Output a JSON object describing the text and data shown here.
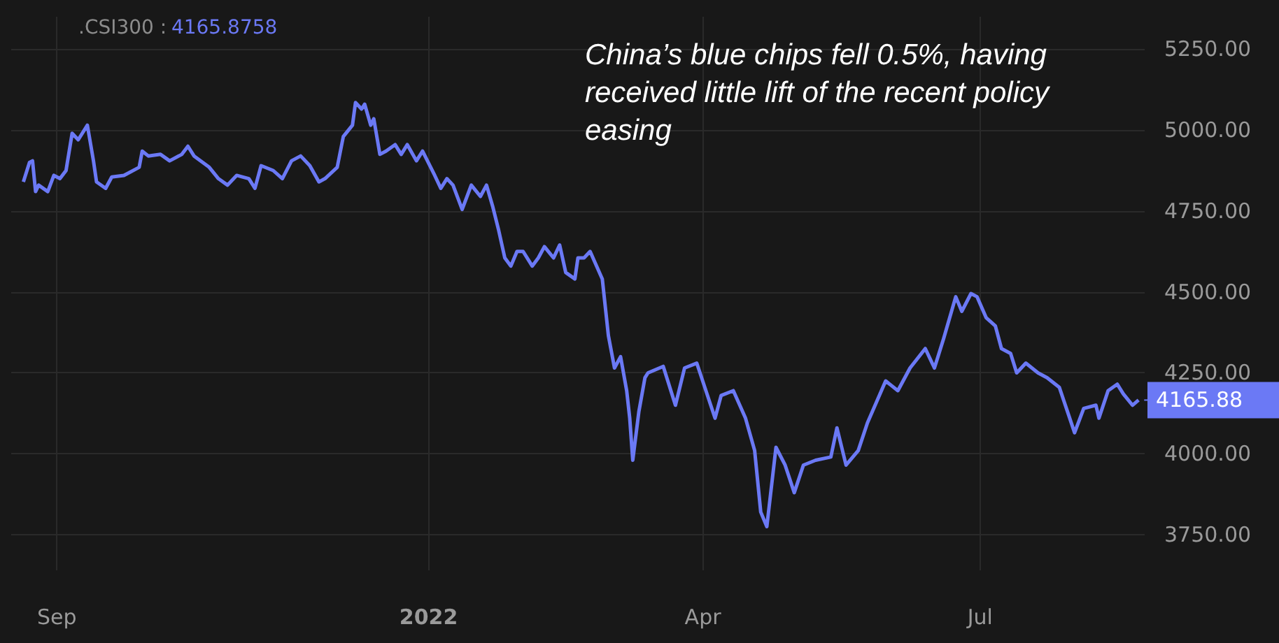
{
  "chart_data": {
    "type": "line",
    "annotations": [
      "China’s blue chips fell 0.5%, having received little lift of the recent policy easing",
      "4165.8758",
      ".CSI300 :",
      {
        "text": "4165.88",
        "x": "2022-08-22",
        "y": 4165.88
      }
    ],
    "x": [
      "2021-08-21",
      "2021-08-23",
      "2021-08-24",
      "2021-08-25",
      "2021-08-26",
      "2021-08-29",
      "2021-08-31",
      "2021-09-02",
      "2021-09-04",
      "2021-09-06",
      "2021-09-08",
      "2021-09-11",
      "2021-09-13",
      "2021-09-14",
      "2021-09-17",
      "2021-09-19",
      "2021-09-23",
      "2021-09-28",
      "2021-09-29",
      "2021-10-01",
      "2021-10-05",
      "2021-10-08",
      "2021-10-12",
      "2021-10-14",
      "2021-10-16",
      "2021-10-21",
      "2021-10-24",
      "2021-10-27",
      "2021-10-30",
      "2021-11-03",
      "2021-11-05",
      "2021-11-07",
      "2021-11-11",
      "2021-11-14",
      "2021-11-17",
      "2021-11-20",
      "2021-11-23",
      "2021-11-26",
      "2021-11-28",
      "2021-12-02",
      "2021-12-04",
      "2021-12-07",
      "2021-12-08",
      "2021-12-10",
      "2021-12-11",
      "2021-12-13",
      "2021-12-14",
      "2021-12-16",
      "2021-12-18",
      "2021-12-21",
      "2021-12-23",
      "2021-12-25",
      "2021-12-28",
      "2021-12-30",
      "2022-01-03",
      "2022-01-05",
      "2022-01-07",
      "2022-01-09",
      "2022-01-12",
      "2022-01-15",
      "2022-01-18",
      "2022-01-20",
      "2022-01-22",
      "2022-01-24",
      "2022-01-26",
      "2022-01-28",
      "2022-01-30",
      "2022-02-01",
      "2022-02-04",
      "2022-02-06",
      "2022-02-08",
      "2022-02-11",
      "2022-02-13",
      "2022-02-15",
      "2022-02-18",
      "2022-02-19",
      "2022-02-21",
      "2022-02-23",
      "2022-02-27",
      "2022-03-01",
      "2022-03-03",
      "2022-03-05",
      "2022-03-07",
      "2022-03-08",
      "2022-03-09",
      "2022-03-11",
      "2022-03-13",
      "2022-03-14",
      "2022-03-19",
      "2022-03-23",
      "2022-03-26",
      "2022-03-30",
      "2022-04-05",
      "2022-04-07",
      "2022-04-11",
      "2022-04-15",
      "2022-04-18",
      "2022-04-20",
      "2022-04-22",
      "2022-04-25",
      "2022-04-28",
      "2022-05-01",
      "2022-05-04",
      "2022-05-08",
      "2022-05-13",
      "2022-05-15",
      "2022-05-18",
      "2022-05-22",
      "2022-05-25",
      "2022-05-31",
      "2022-06-04",
      "2022-06-08",
      "2022-06-13",
      "2022-06-16",
      "2022-06-19",
      "2022-06-23",
      "2022-06-25",
      "2022-06-28",
      "2022-06-30",
      "2022-07-03",
      "2022-07-06",
      "2022-07-08",
      "2022-07-11",
      "2022-07-13",
      "2022-07-16",
      "2022-07-20",
      "2022-07-23",
      "2022-07-27",
      "2022-08-01",
      "2022-08-04",
      "2022-08-08",
      "2022-08-09",
      "2022-08-12",
      "2022-08-15",
      "2022-08-17",
      "2022-08-20",
      "2022-08-22"
    ],
    "series": [
      {
        "color": "#6b79f5",
        "values": [
          4840,
          4900,
          4905,
          4810,
          4830,
          4810,
          4860,
          4850,
          4875,
          4990,
          4970,
          5015,
          4905,
          4840,
          4820,
          4855,
          4860,
          4885,
          4935,
          4920,
          4925,
          4905,
          4925,
          4950,
          4920,
          4885,
          4850,
          4830,
          4860,
          4850,
          4820,
          4890,
          4875,
          4850,
          4905,
          4920,
          4890,
          4840,
          4850,
          4885,
          4980,
          5015,
          5085,
          5065,
          5080,
          5015,
          5035,
          4925,
          4935,
          4955,
          4925,
          4955,
          4905,
          4935,
          4860,
          4820,
          4850,
          4830,
          4755,
          4830,
          4795,
          4830,
          4765,
          4690,
          4605,
          4580,
          4625,
          4625,
          4580,
          4605,
          4640,
          4605,
          4645,
          4560,
          4540,
          4605,
          4605,
          4625,
          4540,
          4365,
          4265,
          4300,
          4195,
          4110,
          3980,
          4130,
          4235,
          4250,
          4270,
          4150,
          4265,
          4280,
          4110,
          4180,
          4195,
          4110,
          4010,
          3820,
          3775,
          4020,
          3965,
          3880,
          3965,
          3980,
          3990,
          4080,
          3965,
          4010,
          4095,
          4225,
          4195,
          4265,
          4325,
          4265,
          4355,
          4485,
          4440,
          4495,
          4485,
          4420,
          4395,
          4325,
          4310,
          4250,
          4280,
          4250,
          4235,
          4205,
          4065,
          4140,
          4150,
          4110,
          4195,
          4215,
          4185,
          4150,
          4165.88
        ]
      }
    ],
    "xlim": [
      "2021-08-17",
      "2022-08-24"
    ],
    "xticks": [
      {
        "value": "2021-09-01",
        "label": "Sep"
      },
      {
        "value": "2022-01-01",
        "label": "2022"
      },
      {
        "value": "2022-04-01",
        "label": "Apr"
      },
      {
        "value": "2022-07-01",
        "label": "Jul"
      }
    ],
    "ylim": [
      3640,
      5350
    ],
    "yticks": [
      {
        "value": 3750,
        "label": "3750.00"
      },
      {
        "value": 4000,
        "label": "4000.00"
      },
      {
        "value": 4250,
        "label": "4250.00"
      },
      {
        "value": 4500,
        "label": "4500.00"
      },
      {
        "value": 4750,
        "label": "4750.00"
      },
      {
        "value": 5000,
        "label": "5000.00"
      },
      {
        "value": 5250,
        "label": "5250.00"
      }
    ],
    "grid": true,
    "marker": "none",
    "line_style": "solid"
  }
}
